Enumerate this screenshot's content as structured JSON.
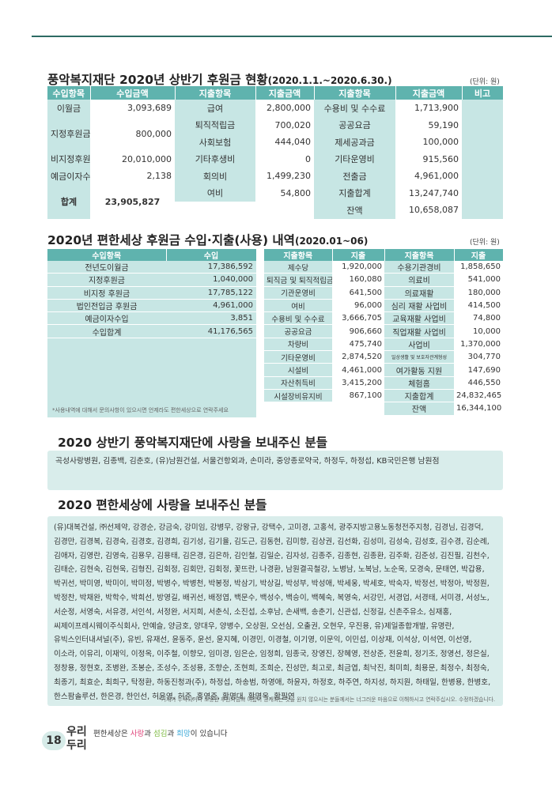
{
  "section1": {
    "title": "풍악복지재단 2020년 상반기 후원금 현황",
    "period": "(2020.1.1.~2020.6.30.)",
    "unit": "(단위: 원)",
    "headers": [
      "수입항목",
      "수입금액",
      "지출항목",
      "지출금액",
      "지출항목",
      "지출금액",
      "비고"
    ],
    "income": [
      [
        "이월금",
        "3,093,689"
      ],
      [
        "지정후원금",
        "800,000"
      ],
      [
        "비지정후원금",
        "20,010,000"
      ],
      [
        "예금이자수입",
        "2,138"
      ],
      [
        "합계",
        "23,905,827"
      ]
    ],
    "expense_rows": [
      [
        "급여",
        "2,800,000",
        "수용비 및 수수료",
        "1,713,900"
      ],
      [
        "퇴직적립금",
        "700,020",
        "공공요금",
        "59,190"
      ],
      [
        "사회보험",
        "444,040",
        "제세공과금",
        "100,000"
      ],
      [
        "기타후생비",
        "0",
        "기타운영비",
        "915,560"
      ],
      [
        "회의비",
        "1,499,230",
        "전출금",
        "4,961,000"
      ],
      [
        "여비",
        "54,800",
        "지출합계",
        "13,247,740"
      ],
      [
        "",
        "",
        "잔액",
        "10,658,087"
      ]
    ]
  },
  "section2": {
    "title": "2020년 편한세상 후원금 수입·지출(사용) 내역",
    "period": "(2020.01~06)",
    "unit": "(단위: 원)",
    "income_headers": [
      "수입항목",
      "수입"
    ],
    "income": [
      [
        "전년도이월금",
        "17,386,592"
      ],
      [
        "지정후원금",
        "1,040,000"
      ],
      [
        "비지정 후원금",
        "17,785,122"
      ],
      [
        "법인전입금 후원금",
        "4,961,000"
      ],
      [
        "예금이자수입",
        "3,851"
      ],
      [
        "수입합계",
        "41,176,565"
      ]
    ],
    "expense_headers": [
      "지출항목",
      "지출",
      "지출항목",
      "지출"
    ],
    "expense": [
      [
        "제수당",
        "1,920,000",
        "수용기관경비",
        "1,858,650"
      ],
      [
        "퇴직금 및 퇴직적립금",
        "160,080",
        "의료비",
        "541,000"
      ],
      [
        "기관운영비",
        "641,500",
        "의료재활",
        "180,000"
      ],
      [
        "여비",
        "96,000",
        "심리 재활 사업비",
        "414,500"
      ],
      [
        "수용비 및 수수료",
        "3,666,705",
        "교육재활 사업비",
        "74,800"
      ],
      [
        "공공요금",
        "906,660",
        "직업재활 사업비",
        "10,000"
      ],
      [
        "차량비",
        "475,740",
        "사업비",
        "1,370,000"
      ],
      [
        "기타운영비",
        "2,874,520",
        "일상생활 및 보호자관계형성",
        "304,770"
      ],
      [
        "시설비",
        "4,461,000",
        "여가활동 지원",
        "147,690"
      ],
      [
        "자산취득비",
        "3,415,200",
        "체험홈",
        "446,550"
      ],
      [
        "시설장비유지비",
        "867,100",
        "지출합계",
        "24,832,465"
      ],
      [
        "",
        "",
        "잔액",
        "16,344,100"
      ]
    ],
    "note": "*사용내역에 대해서 문의사항이 있으시면 언제라도 편한세상으로 연락주세요"
  },
  "section3": {
    "title": "2020 상반기 풍악복지재단에 사랑을 보내주신 분들",
    "text": "곡성사랑병원, 김종백, 김춘호, (유)남원건설, 서울건항외과, 손미라, 중앙종로약국, 하정두, 하정섭, KB국민은행 남원점"
  },
  "section4": {
    "title": "2020 편한세상에 사랑을 보내주신 분들",
    "text": "(유)대복건설, ㈜선제약, 강경순, 강금숙, 강미임, 강병무, 강왕규, 강택수, 고미경, 고홍석, 광주지방고용노동청전주지청, 김경님, 김경덕, 김경만, 김경복, 김경숙, 김경호, 김경희, 김기성, 김기율, 김도근, 김동현, 김미향, 김상권, 김선화, 김성미, 김성숙, 김성호, 김수경, 김순례, 김애자, 김영란, 김영숙, 김용우, 김용태, 김은경, 김은하, 김인철, 김일순, 김자성, 김종주, 김종현, 김종환, 김주화, 김준성, 김진필, 김천수, 김태순, 김현숙, 김현욱, 김형진, 김회정, 김회만, 김회정, 꽃뜨란, 나경환, 남원결곡철강, 노병남, 노복남, 노순옥, 모경숙, 문태연, 박갑용, 박귀선, 박미영, 박미이, 박미정, 박병수, 박병천, 박봉정, 박삼기, 박상길, 박성부, 박성애, 박세웅, 박세호, 박숙자, 박정선, 박정아, 박정원, 박정찬, 박채완, 박학수, 박희선, 방영길, 배귀선, 배정엽, 백문수, 백성수, 백승이, 백혜숙, 복영숙, 서강민, 서경업, 서경태, 서미경, 서성노, 서순정, 서영숙, 서유경, 서인석, 서정완, 서지희, 서춘식, 소진섭, 소후남, 손새백, 송춘기, 신관섭, 신정길, 신촌주유소, 심재홍, 씨제이프레시웨이주식회사, 안예슬, 양금호, 양대우, 양병수, 오상원, 오선심, 오출권, 오현우, 우진용, 유)제일종합개발, 유명란, 유빅스인터내셔널(주), 유빈, 유재선, 윤동주, 윤선, 윤지혜, 이경민, 이경철, 이기영, 이문익, 이민섭, 이상재, 이석상, 이석연, 이선영, 이소라, 이유리, 이재익, 이정옥, 이주철, 이향모, 임미경, 임은순, 임정희, 임종국, 장영진, 장혜영, 전상준, 전윤희, 정기조, 정영선, 정은실, 정창용, 정현호, 조병완, 조봉순, 조성수, 조성용, 조향순, 조현희, 조희순, 진성만, 최고로, 최금엽, 최낙진, 최미희, 최용문, 최정수, 최정숙, 최종기, 최효순, 최희구, 탁정환, 하동진청과(주), 하정섭, 하송범, 하영애, 하윤자, 하정호, 하주연, 하지성, 하지원, 하태일, 한병용, 한병호, 한스팜솔루션, 한은경, 한인선, 허윤영, 허준, 홍영준, 황명대, 황명옥, 황필연",
    "note": "*기재가 누락되거나 소중한 후원자님의 이름이 공개되는 것을 원치 않으시는 분들께서는 너그러운 마음으로 이해하시고 연락주십시오. 수정하겠습니다."
  },
  "footer": {
    "page_number": "18",
    "brand_line1": "우리",
    "brand_line2": "두리",
    "tagline_pre": "편한세상은 ",
    "w1": "사랑",
    "mid1": "과 ",
    "w2": "섬김",
    "mid2": "과 ",
    "w3": "희망",
    "tagline_post": "이 있습니다",
    "colors": {
      "w1": "#e0457b",
      "w2": "#7bb93e",
      "w3": "#3aa8d8"
    }
  }
}
